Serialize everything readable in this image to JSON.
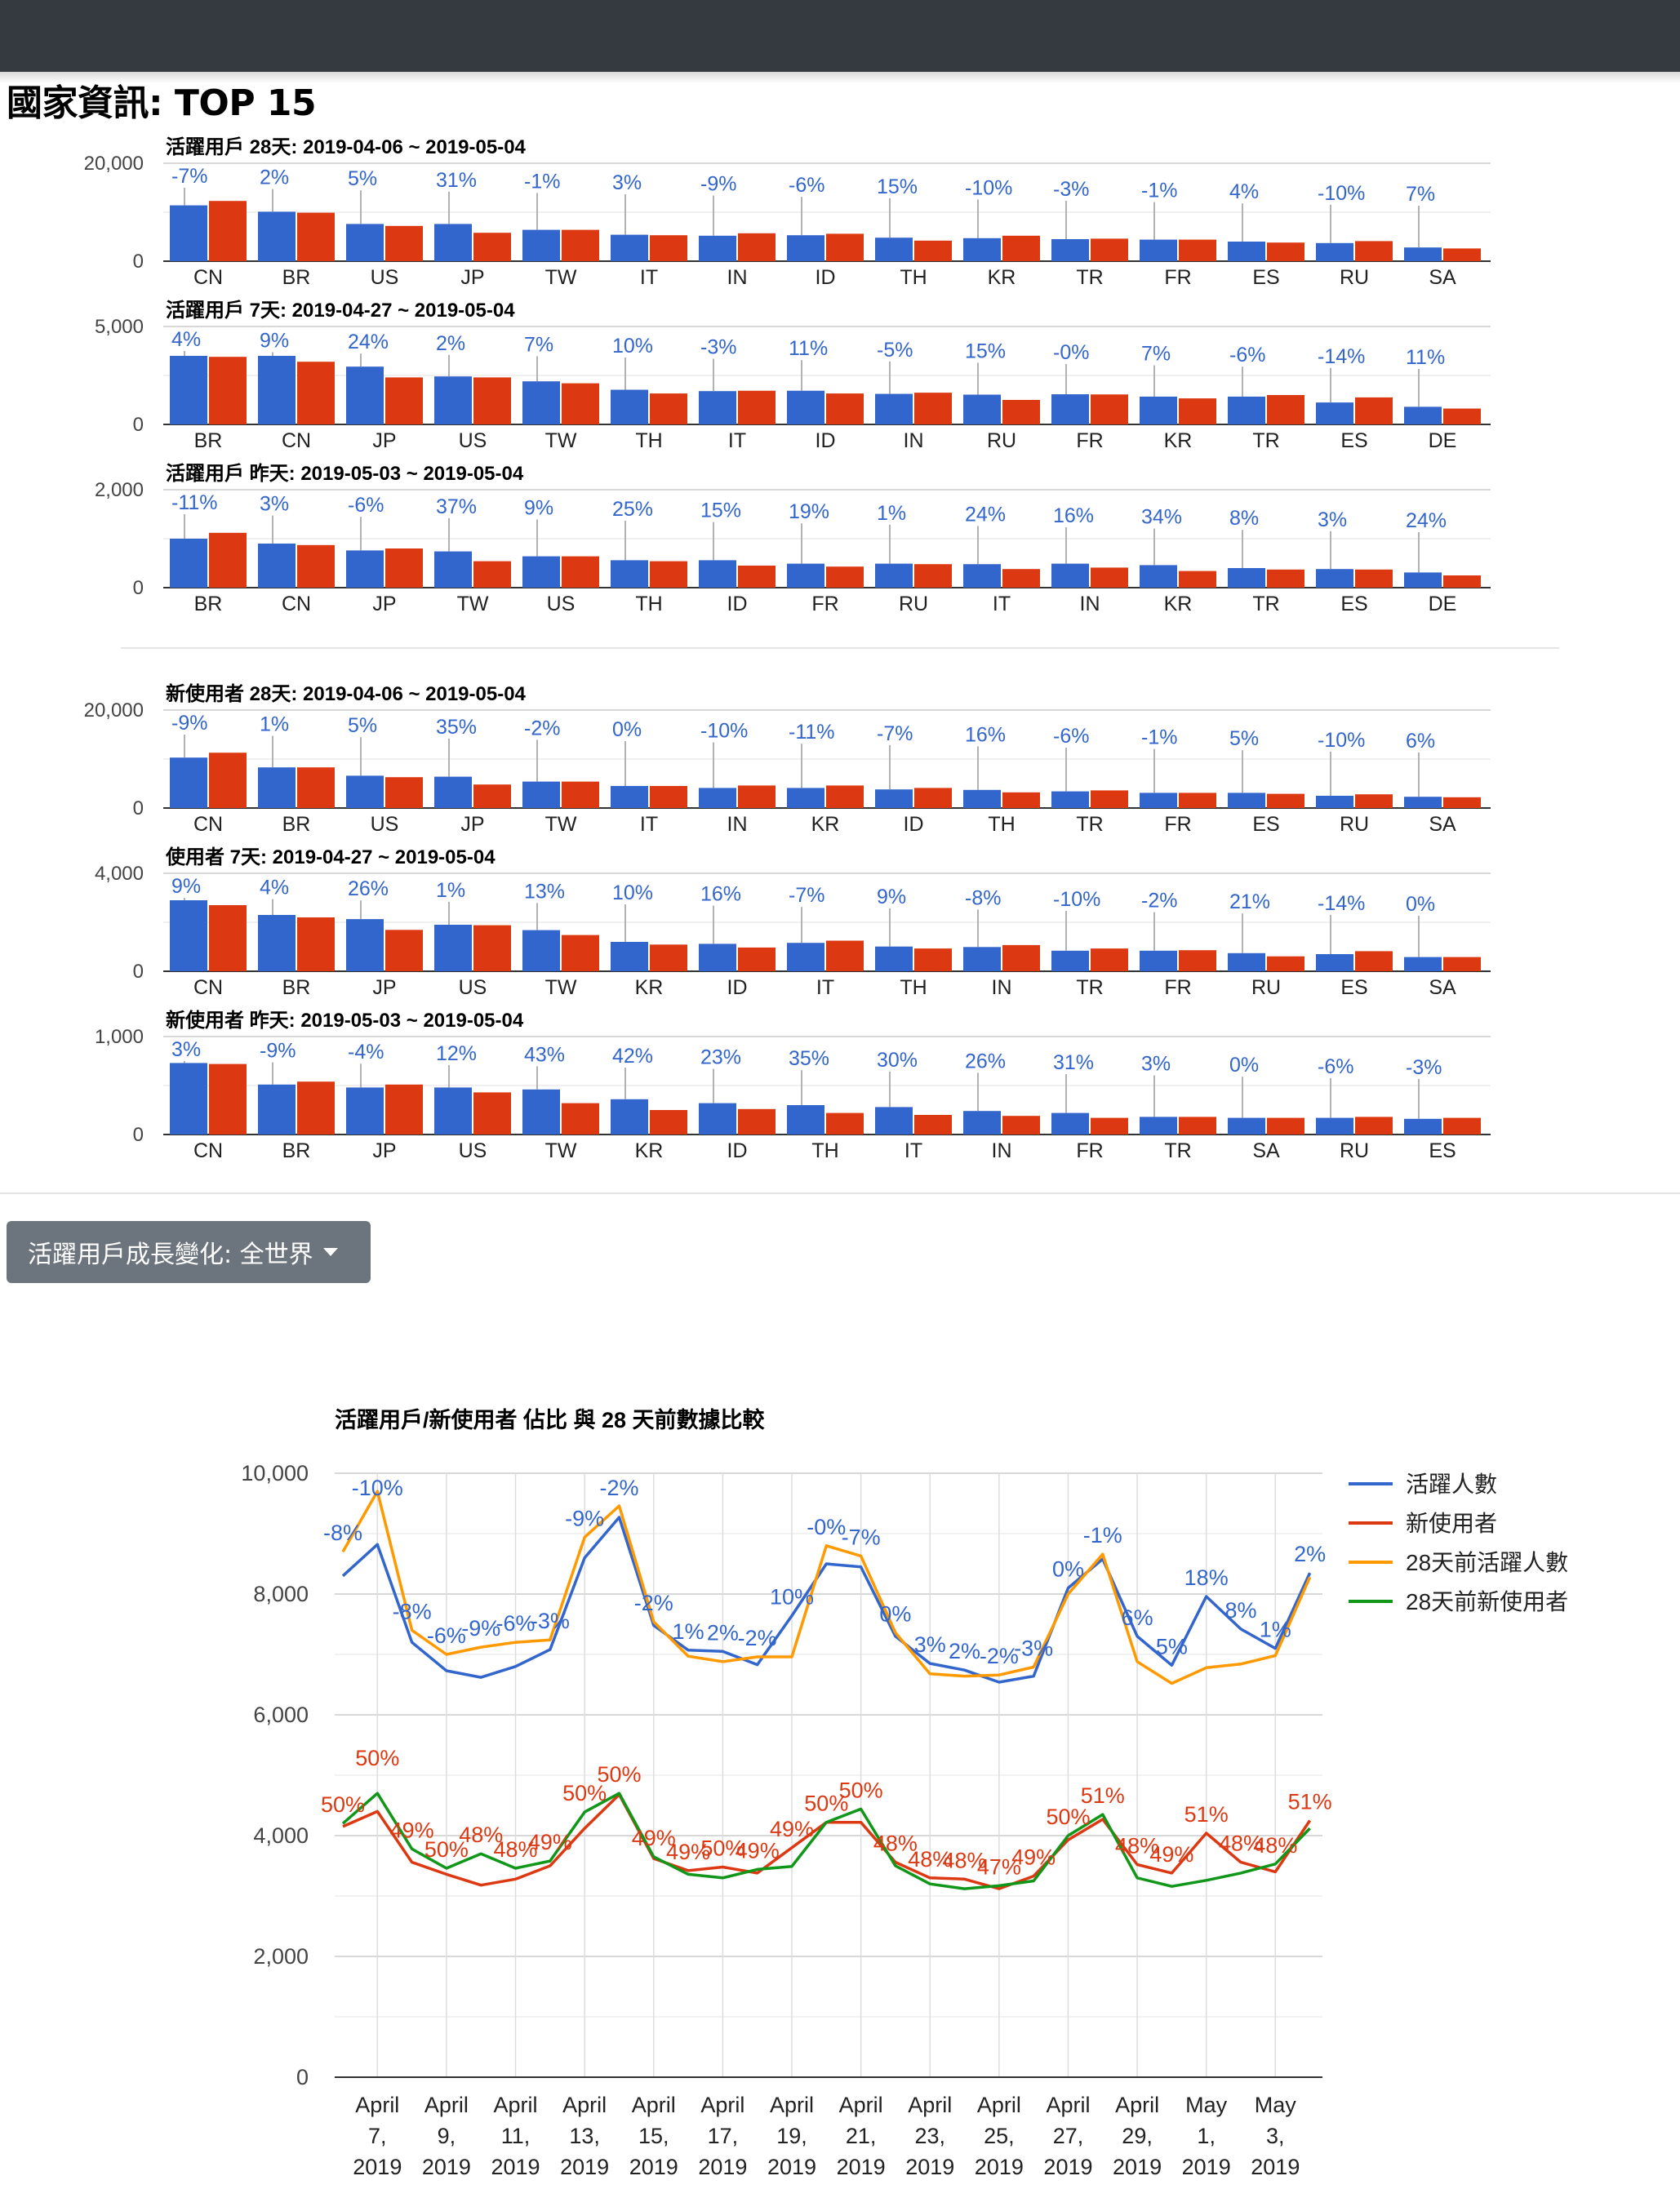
{
  "page": {
    "title": "國家資訊: TOP 15"
  },
  "dropdown": {
    "label": "活躍用戶成長變化: 全世界"
  },
  "chart_data": [
    {
      "type": "bar",
      "title": "活躍用戶 28天: 2019-04-06 ~ 2019-05-04",
      "ylim": [
        0,
        20000
      ],
      "yticks": [
        "20,000",
        "0"
      ],
      "grid": true,
      "categories": [
        "CN",
        "BR",
        "US",
        "JP",
        "TW",
        "IT",
        "IN",
        "ID",
        "TH",
        "KR",
        "TR",
        "FR",
        "ES",
        "RU",
        "SA"
      ],
      "series": [
        {
          "color": "#3366cc",
          "values": [
            11400,
            10100,
            7600,
            7600,
            6400,
            5400,
            5200,
            5300,
            4800,
            4700,
            4500,
            4400,
            4000,
            3700,
            2800
          ]
        },
        {
          "color": "#dc3912",
          "values": [
            12300,
            9900,
            7200,
            5800,
            6400,
            5300,
            5700,
            5600,
            4200,
            5200,
            4600,
            4400,
            3800,
            4100,
            2600
          ]
        }
      ],
      "data_labels": [
        "-7%",
        "2%",
        "5%",
        "31%",
        "-1%",
        "3%",
        "-9%",
        "-6%",
        "15%",
        "-10%",
        "-3%",
        "-1%",
        "4%",
        "-10%",
        "7%"
      ]
    },
    {
      "type": "bar",
      "title": "活躍用戶 7天: 2019-04-27 ~ 2019-05-04",
      "ylim": [
        0,
        5000
      ],
      "yticks": [
        "5,000",
        "0"
      ],
      "grid": true,
      "categories": [
        "BR",
        "CN",
        "JP",
        "US",
        "TW",
        "TH",
        "IT",
        "ID",
        "IN",
        "RU",
        "FR",
        "KR",
        "TR",
        "ES",
        "DE"
      ],
      "series": [
        {
          "color": "#3366cc",
          "values": [
            3500,
            3500,
            2950,
            2450,
            2200,
            1770,
            1700,
            1720,
            1560,
            1520,
            1540,
            1420,
            1420,
            1120,
            900
          ]
        },
        {
          "color": "#dc3912",
          "values": [
            3450,
            3200,
            2400,
            2400,
            2100,
            1580,
            1720,
            1580,
            1620,
            1250,
            1530,
            1330,
            1500,
            1380,
            810
          ]
        }
      ],
      "data_labels": [
        "4%",
        "9%",
        "24%",
        "2%",
        "7%",
        "10%",
        "-3%",
        "11%",
        "-5%",
        "15%",
        "-0%",
        "7%",
        "-6%",
        "-14%",
        "11%"
      ]
    },
    {
      "type": "bar",
      "title": "活躍用戶 昨天: 2019-05-03 ~ 2019-05-04",
      "ylim": [
        0,
        2000
      ],
      "yticks": [
        "2,000",
        "0"
      ],
      "grid": true,
      "categories": [
        "BR",
        "CN",
        "JP",
        "TW",
        "US",
        "TH",
        "ID",
        "FR",
        "RU",
        "IT",
        "IN",
        "KR",
        "TR",
        "ES",
        "DE"
      ],
      "series": [
        {
          "color": "#3366cc",
          "values": [
            1000,
            900,
            760,
            740,
            640,
            560,
            560,
            490,
            490,
            480,
            490,
            460,
            400,
            380,
            310
          ]
        },
        {
          "color": "#dc3912",
          "values": [
            1120,
            870,
            800,
            540,
            640,
            540,
            450,
            430,
            480,
            380,
            410,
            340,
            370,
            370,
            250
          ]
        }
      ],
      "data_labels": [
        "-11%",
        "3%",
        "-6%",
        "37%",
        "9%",
        "25%",
        "15%",
        "19%",
        "1%",
        "24%",
        "16%",
        "34%",
        "8%",
        "3%",
        "24%"
      ]
    },
    {
      "type": "bar",
      "title": "新使用者 28天: 2019-04-06 ~ 2019-05-04",
      "ylim": [
        0,
        20000
      ],
      "yticks": [
        "20,000",
        "0"
      ],
      "grid": true,
      "categories": [
        "CN",
        "BR",
        "US",
        "JP",
        "TW",
        "IT",
        "IN",
        "KR",
        "ID",
        "TH",
        "TR",
        "FR",
        "ES",
        "RU",
        "SA"
      ],
      "series": [
        {
          "color": "#3366cc",
          "values": [
            10300,
            8300,
            6600,
            6400,
            5400,
            4500,
            4100,
            4100,
            3800,
            3700,
            3400,
            3100,
            3100,
            2500,
            2300
          ]
        },
        {
          "color": "#dc3912",
          "values": [
            11300,
            8300,
            6300,
            4800,
            5400,
            4500,
            4600,
            4600,
            4100,
            3200,
            3600,
            3100,
            2900,
            2800,
            2200
          ]
        }
      ],
      "data_labels": [
        "-9%",
        "1%",
        "5%",
        "35%",
        "-2%",
        "0%",
        "-10%",
        "-11%",
        "-7%",
        "16%",
        "-6%",
        "-1%",
        "5%",
        "-10%",
        "6%"
      ]
    },
    {
      "type": "bar",
      "title": "使用者 7天: 2019-04-27 ~ 2019-05-04",
      "ylim": [
        0,
        4000
      ],
      "yticks": [
        "4,000",
        "0"
      ],
      "grid": true,
      "categories": [
        "CN",
        "BR",
        "JP",
        "US",
        "TW",
        "KR",
        "ID",
        "IT",
        "TH",
        "IN",
        "TR",
        "FR",
        "RU",
        "ES",
        "SA"
      ],
      "series": [
        {
          "color": "#3366cc",
          "values": [
            2900,
            2300,
            2130,
            1900,
            1680,
            1200,
            1120,
            1160,
            1010,
            990,
            840,
            840,
            740,
            700,
            580
          ]
        },
        {
          "color": "#dc3912",
          "values": [
            2700,
            2200,
            1690,
            1880,
            1480,
            1090,
            970,
            1250,
            930,
            1070,
            930,
            860,
            610,
            820,
            580
          ]
        }
      ],
      "data_labels": [
        "9%",
        "4%",
        "26%",
        "1%",
        "13%",
        "10%",
        "16%",
        "-7%",
        "9%",
        "-8%",
        "-10%",
        "-2%",
        "21%",
        "-14%",
        "0%"
      ]
    },
    {
      "type": "bar",
      "title": "新使用者 昨天: 2019-05-03 ~ 2019-05-04",
      "ylim": [
        0,
        1000
      ],
      "yticks": [
        "1,000",
        "0"
      ],
      "grid": true,
      "categories": [
        "CN",
        "BR",
        "JP",
        "US",
        "TW",
        "KR",
        "ID",
        "TH",
        "IT",
        "IN",
        "FR",
        "TR",
        "SA",
        "RU",
        "ES"
      ],
      "series": [
        {
          "color": "#3366cc",
          "values": [
            730,
            510,
            480,
            480,
            460,
            360,
            320,
            300,
            280,
            240,
            220,
            180,
            170,
            170,
            160
          ]
        },
        {
          "color": "#dc3912",
          "values": [
            720,
            540,
            510,
            430,
            320,
            250,
            260,
            220,
            200,
            190,
            170,
            180,
            170,
            180,
            170
          ]
        }
      ],
      "data_labels": [
        "3%",
        "-9%",
        "-4%",
        "12%",
        "43%",
        "42%",
        "23%",
        "35%",
        "30%",
        "26%",
        "31%",
        "3%",
        "0%",
        "-6%",
        "-3%"
      ]
    },
    {
      "type": "line",
      "title": "活躍用戶/新使用者 佔比 與 28 天前數據比較",
      "ylim": [
        0,
        10000
      ],
      "yticks": [
        "10,000",
        "8,000",
        "6,000",
        "4,000",
        "2,000",
        "0"
      ],
      "x": [
        "2019-04-06",
        "2019-04-07",
        "2019-04-08",
        "2019-04-09",
        "2019-04-10",
        "2019-04-11",
        "2019-04-12",
        "2019-04-13",
        "2019-04-14",
        "2019-04-15",
        "2019-04-16",
        "2019-04-17",
        "2019-04-18",
        "2019-04-19",
        "2019-04-20",
        "2019-04-21",
        "2019-04-22",
        "2019-04-23",
        "2019-04-24",
        "2019-04-25",
        "2019-04-26",
        "2019-04-27",
        "2019-04-28",
        "2019-04-29",
        "2019-04-30",
        "2019-05-01",
        "2019-05-02",
        "2019-05-03",
        "2019-05-04"
      ],
      "x_tick_labels": [
        [
          "April",
          "7,",
          "2019"
        ],
        [
          "April",
          "9,",
          "2019"
        ],
        [
          "April",
          "11,",
          "2019"
        ],
        [
          "April",
          "13,",
          "2019"
        ],
        [
          "April",
          "15,",
          "2019"
        ],
        [
          "April",
          "17,",
          "2019"
        ],
        [
          "April",
          "19,",
          "2019"
        ],
        [
          "April",
          "21,",
          "2019"
        ],
        [
          "April",
          "23,",
          "2019"
        ],
        [
          "April",
          "25,",
          "2019"
        ],
        [
          "April",
          "27,",
          "2019"
        ],
        [
          "April",
          "29,",
          "2019"
        ],
        [
          "May",
          "1,",
          "2019"
        ],
        [
          "May",
          "3,",
          "2019"
        ]
      ],
      "legend_position": "right",
      "series": [
        {
          "name": "活躍人數",
          "color": "#3366cc",
          "values": [
            8300,
            8820,
            7200,
            6730,
            6620,
            6800,
            7080,
            8600,
            9270,
            7480,
            7070,
            7050,
            6830,
            7640,
            8500,
            8450,
            7300,
            6850,
            6740,
            6540,
            6640,
            8100,
            8580,
            7300,
            6820,
            7960,
            7420,
            7100,
            8350
          ]
        },
        {
          "name": "新使用者",
          "color": "#dc3912",
          "values": [
            4150,
            4400,
            3560,
            3360,
            3180,
            3280,
            3500,
            4120,
            4680,
            3620,
            3420,
            3480,
            3380,
            3800,
            4220,
            4220,
            3560,
            3300,
            3280,
            3120,
            3330,
            3930,
            4270,
            3520,
            3380,
            4040,
            3560,
            3400,
            4250
          ]
        },
        {
          "name": "28天前活躍人數",
          "color": "#ff9900",
          "values": [
            8700,
            9700,
            7400,
            7000,
            7120,
            7200,
            7240,
            8940,
            9460,
            7540,
            6970,
            6880,
            6960,
            6960,
            8800,
            8630,
            7360,
            6680,
            6640,
            6660,
            6790,
            8000,
            8660,
            6880,
            6520,
            6780,
            6840,
            6980,
            8280
          ]
        },
        {
          "name": "28天前新使用者",
          "color": "#109618",
          "values": [
            4200,
            4700,
            3780,
            3460,
            3700,
            3460,
            3580,
            4390,
            4700,
            3650,
            3360,
            3300,
            3440,
            3490,
            4220,
            4440,
            3500,
            3200,
            3120,
            3170,
            3250,
            4000,
            4350,
            3300,
            3160,
            3260,
            3380,
            3530,
            4120
          ]
        }
      ],
      "series1_labels": [
        "-8%",
        "-10%",
        "-8%",
        "-6%",
        "-9%",
        "-6%",
        "-3%",
        "-9%",
        "-2%",
        "-2%",
        "1%",
        "2%",
        "-2%",
        "10%",
        "-0%",
        "-7%",
        "0%",
        "3%",
        "2%",
        "-2%",
        "-3%",
        "0%",
        "-1%",
        "6%",
        "5%",
        "18%",
        "8%",
        "1%",
        "2%"
      ],
      "series2_labels": [
        "50%",
        "50%",
        "49%",
        "50%",
        "48%",
        "48%",
        "49%",
        "50%",
        "50%",
        "49%",
        "49%",
        "50%",
        "49%",
        "49%",
        "50%",
        "50%",
        "48%",
        "48%",
        "48%",
        "47%",
        "49%",
        "50%",
        "51%",
        "48%",
        "49%",
        "51%",
        "48%",
        "48%",
        "51%"
      ]
    }
  ]
}
